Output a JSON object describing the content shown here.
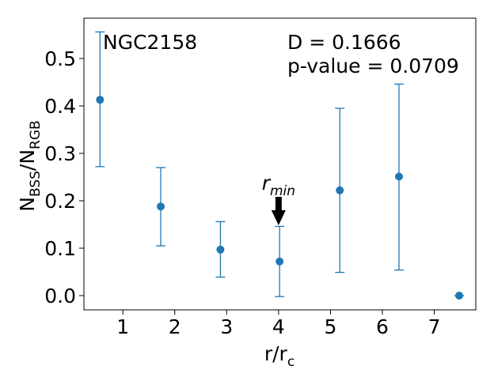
{
  "chart_data": {
    "type": "scatter",
    "cluster_label": "NGC2158",
    "stats": {
      "d_text": "D = 0.1666",
      "p_text": "p-value = 0.0709"
    },
    "xlabel": {
      "main": "r/r",
      "sub": "c"
    },
    "ylabel": {
      "a": "N",
      "a_sub": "BSS",
      "sep": "/N",
      "b_sub": "RGB"
    },
    "annotation": {
      "main": "r",
      "sub": "min",
      "x": 4.0
    },
    "xlim": [
      0.25,
      7.8
    ],
    "ylim": [
      -0.03,
      0.585
    ],
    "xticks": [
      1,
      2,
      3,
      4,
      5,
      6,
      7
    ],
    "yticks": [
      0.0,
      0.1,
      0.2,
      0.3,
      0.4,
      0.5
    ],
    "ytick_labels": [
      "0.0",
      "0.1",
      "0.2",
      "0.3",
      "0.4",
      "0.5"
    ],
    "points": [
      {
        "x": 0.56,
        "y": 0.413,
        "ylow": 0.272,
        "yhigh": 0.556
      },
      {
        "x": 1.73,
        "y": 0.188,
        "ylow": 0.105,
        "yhigh": 0.27
      },
      {
        "x": 2.88,
        "y": 0.097,
        "ylow": 0.039,
        "yhigh": 0.156
      },
      {
        "x": 4.02,
        "y": 0.072,
        "ylow": -0.002,
        "yhigh": 0.146
      },
      {
        "x": 5.18,
        "y": 0.222,
        "ylow": 0.049,
        "yhigh": 0.395
      },
      {
        "x": 6.32,
        "y": 0.251,
        "ylow": 0.054,
        "yhigh": 0.446
      },
      {
        "x": 7.48,
        "y": 0.0,
        "ylow": 0.0,
        "yhigh": 0.0
      }
    ],
    "color": "#1f77b4",
    "grid": false
  }
}
